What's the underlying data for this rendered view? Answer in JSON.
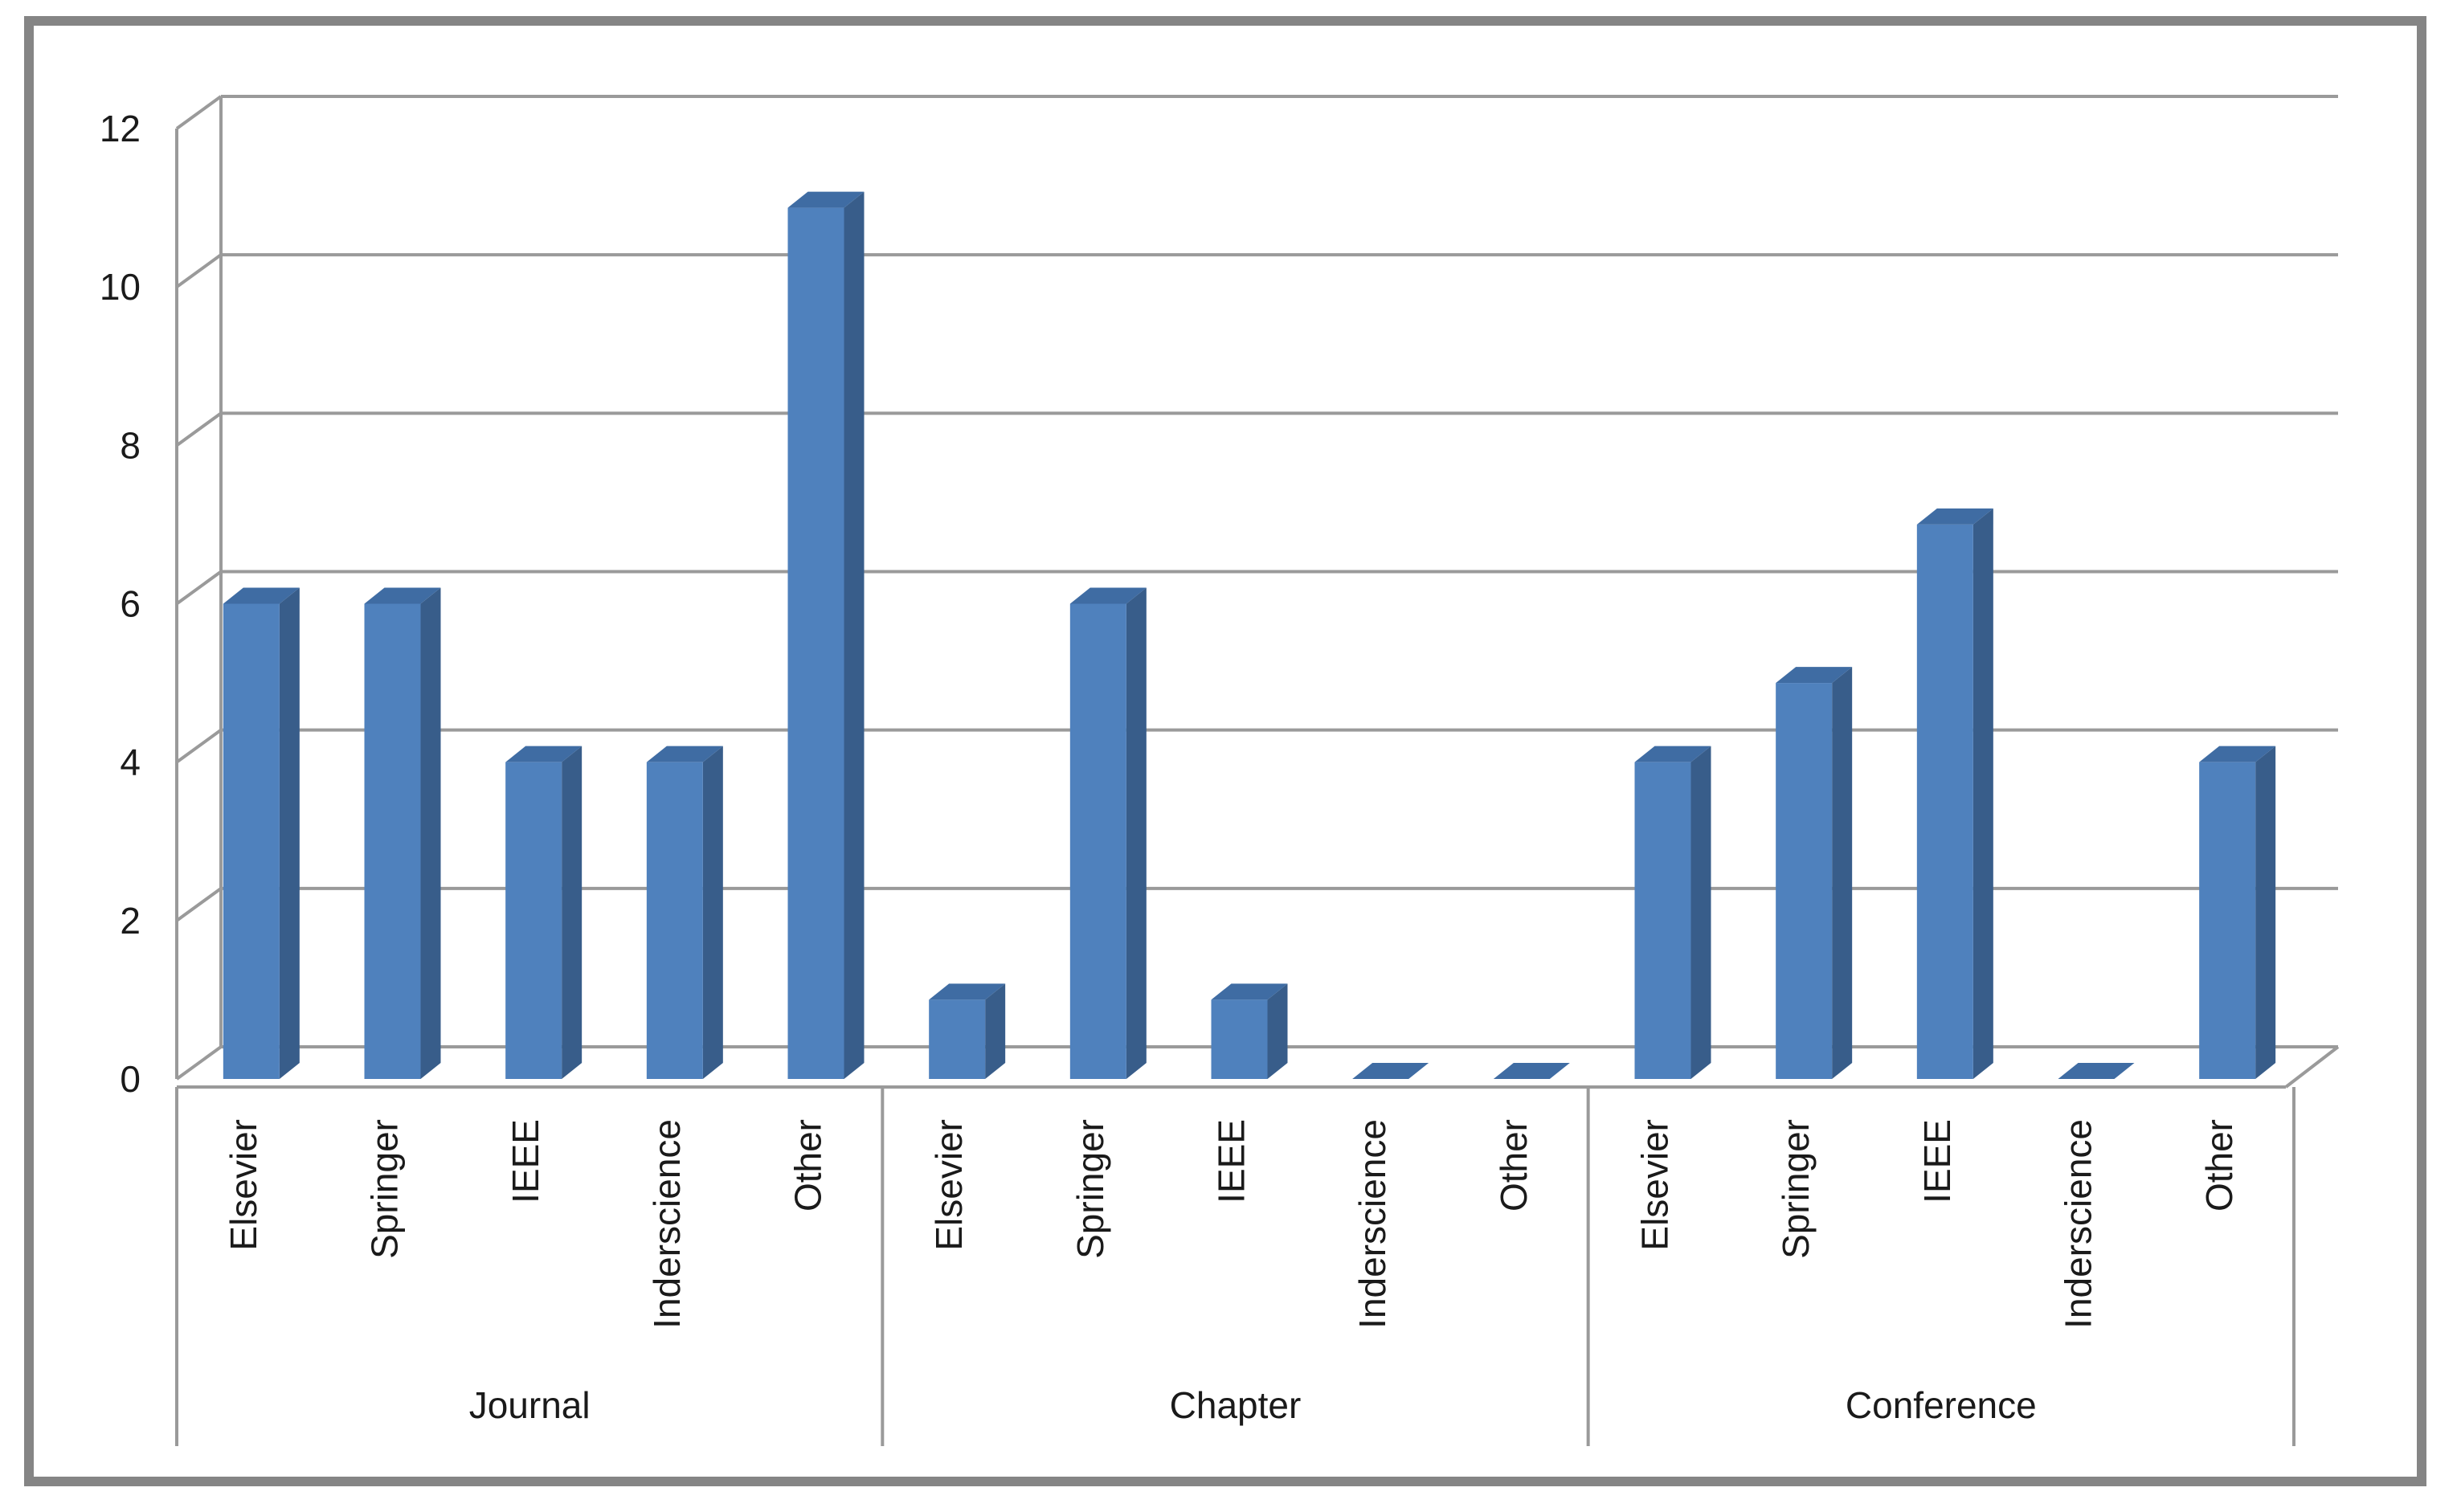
{
  "chart_data": {
    "type": "bar",
    "groups": [
      {
        "label": "Journal",
        "categories": [
          "Elsevier",
          "Springer",
          "IEEE",
          "Inderscience",
          "Other"
        ],
        "values": [
          6,
          6,
          4,
          4,
          11
        ]
      },
      {
        "label": "Chapter",
        "categories": [
          "Elsevier",
          "Springer",
          "IEEE",
          "Inderscience",
          "Other"
        ],
        "values": [
          1,
          6,
          1,
          0,
          0
        ]
      },
      {
        "label": "Conference",
        "categories": [
          "Elsevier",
          "Springer",
          "IEEE",
          "Inderscience",
          "Other"
        ],
        "values": [
          4,
          5,
          7,
          0,
          4
        ]
      }
    ],
    "ylim": [
      0,
      12
    ],
    "yticks": [
      0,
      2,
      4,
      6,
      8,
      10,
      12
    ],
    "grid": true,
    "legend": "none",
    "colors": {
      "front": "#4f81bd",
      "side": "#385d8a",
      "top": "#3f6ca3",
      "grid": "#9a9a9a",
      "frame": "#858585"
    }
  }
}
